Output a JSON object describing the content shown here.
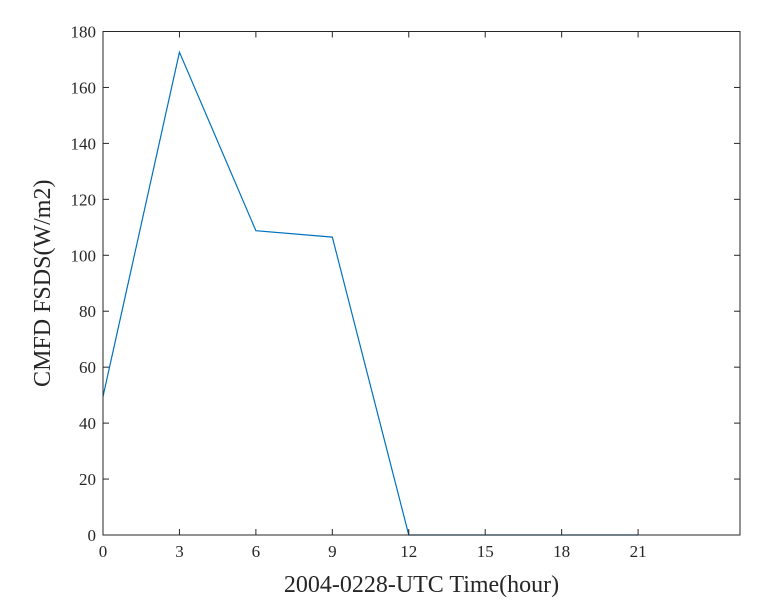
{
  "chart_data": {
    "type": "line",
    "title": "",
    "xlabel": "2004-0228-UTC Time(hour)",
    "ylabel": "CMFD FSDS(W/m2)",
    "xlim": [
      0,
      25
    ],
    "ylim": [
      0,
      180
    ],
    "xticks": [
      0,
      3,
      6,
      9,
      12,
      15,
      18,
      21
    ],
    "yticks": [
      0,
      20,
      40,
      60,
      80,
      100,
      120,
      140,
      160,
      180
    ],
    "grid": false,
    "series": [
      {
        "x": [
          0,
          3,
          6,
          9,
          12,
          15,
          18,
          21
        ],
        "y": [
          49.5,
          172.6,
          108.8,
          106.5,
          0,
          0,
          0,
          0
        ],
        "color": "#0072BD"
      }
    ]
  }
}
